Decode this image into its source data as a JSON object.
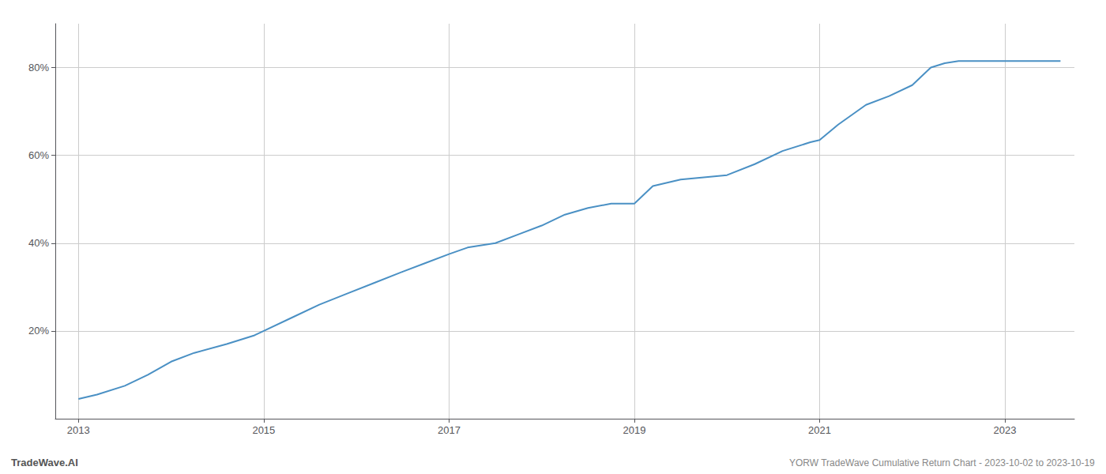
{
  "chart_data": {
    "type": "line",
    "annotations": [
      "TradeWave.AI",
      "YORW TradeWave Cumulative Return Chart - 2023-10-02 to 2023-10-19"
    ],
    "x": [
      2013.0,
      2013.2,
      2013.5,
      2013.75,
      2014.0,
      2014.25,
      2014.6,
      2014.9,
      2015.0,
      2015.3,
      2015.6,
      2015.9,
      2016.2,
      2016.5,
      2016.75,
      2017.0,
      2017.2,
      2017.5,
      2017.75,
      2018.0,
      2018.25,
      2018.5,
      2018.75,
      2019.0,
      2019.2,
      2019.5,
      2019.75,
      2020.0,
      2020.3,
      2020.6,
      2020.9,
      2021.0,
      2021.2,
      2021.5,
      2021.75,
      2022.0,
      2022.2,
      2022.35,
      2022.5,
      2022.75,
      2023.0,
      2023.3,
      2023.6
    ],
    "values": [
      4.5,
      5.5,
      7.5,
      10.0,
      13.0,
      15.0,
      17.0,
      19.0,
      20.0,
      23.0,
      26.0,
      28.5,
      31.0,
      33.5,
      35.5,
      37.5,
      39.0,
      40.0,
      42.0,
      44.0,
      46.5,
      48.0,
      49.0,
      49.0,
      53.0,
      54.5,
      55.0,
      55.5,
      58.0,
      61.0,
      63.0,
      63.5,
      67.0,
      71.5,
      73.5,
      76.0,
      80.0,
      81.0,
      81.5,
      81.5,
      81.5,
      81.5,
      81.5
    ],
    "color": "#4a90c4",
    "xlim": [
      2012.75,
      2023.75
    ],
    "xticks": [
      2013,
      2015,
      2017,
      2019,
      2021,
      2023
    ],
    "ylim": [
      0,
      90
    ],
    "yticks": [
      {
        "value": 20,
        "label": "20%"
      },
      {
        "value": 40,
        "label": "40%"
      },
      {
        "value": 60,
        "label": "60%"
      },
      {
        "value": 80,
        "label": "80%"
      }
    ],
    "grid": true
  }
}
